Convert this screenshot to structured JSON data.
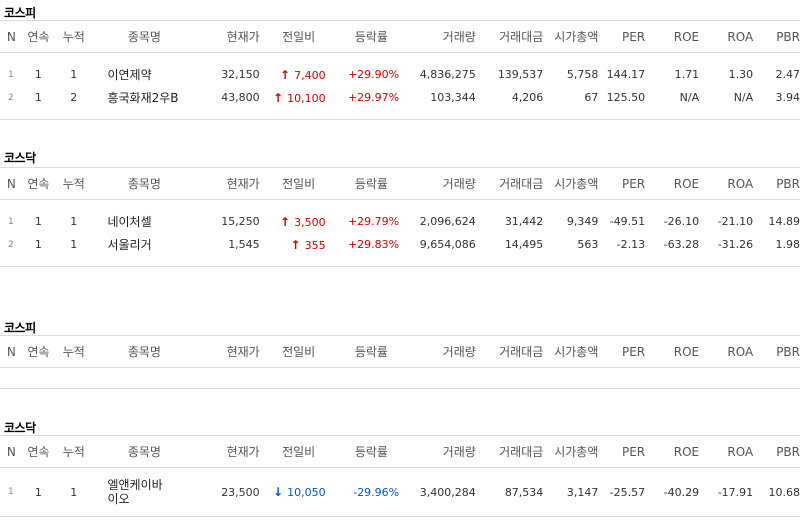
{
  "columns": [
    "N",
    "연속",
    "누적",
    "종목명",
    "현재가",
    "전일비",
    "등락률",
    "거래량",
    "거래대금",
    "시가총액",
    "PER",
    "ROE",
    "ROA",
    "PBR"
  ],
  "sections": [
    {
      "title": "코스피",
      "rows": [
        {
          "n": "1",
          "cont": "1",
          "cum": "1",
          "name": "이연제약",
          "price": "32,150",
          "dir": "up",
          "change": "7,400",
          "rate": "+29.90%",
          "volume": "4,836,275",
          "amount": "139,537",
          "cap": "5,758",
          "per": "144.17",
          "roe": "1.71",
          "roa": "1.30",
          "pbr": "2.47"
        },
        {
          "n": "2",
          "cont": "1",
          "cum": "2",
          "name": "흥국화재2우B",
          "price": "43,800",
          "dir": "up",
          "change": "10,100",
          "rate": "+29.97%",
          "volume": "103,344",
          "amount": "4,206",
          "cap": "67",
          "per": "125.50",
          "roe": "N/A",
          "roa": "N/A",
          "pbr": "3.94"
        }
      ]
    },
    {
      "title": "코스닥",
      "rows": [
        {
          "n": "1",
          "cont": "1",
          "cum": "1",
          "name": "네이처셀",
          "price": "15,250",
          "dir": "up",
          "change": "3,500",
          "rate": "+29.79%",
          "volume": "2,096,624",
          "amount": "31,442",
          "cap": "9,349",
          "per": "-49.51",
          "roe": "-26.10",
          "roa": "-21.10",
          "pbr": "14.89"
        },
        {
          "n": "2",
          "cont": "1",
          "cum": "1",
          "name": "서울리거",
          "price": "1,545",
          "dir": "up",
          "change": "355",
          "rate": "+29.83%",
          "volume": "9,654,086",
          "amount": "14,495",
          "cap": "563",
          "per": "-2.13",
          "roe": "-63.28",
          "roa": "-31.26",
          "pbr": "1.98"
        }
      ]
    },
    {
      "title": "코스피",
      "rows": []
    },
    {
      "title": "코스닥",
      "rows": [
        {
          "n": "1",
          "cont": "1",
          "cum": "1",
          "name": "엘앤케이바이오",
          "price": "23,500",
          "dir": "down",
          "change": "10,050",
          "rate": "-29.96%",
          "volume": "3,400,284",
          "amount": "87,534",
          "cap": "3,147",
          "per": "-25.57",
          "roe": "-40.29",
          "roa": "-17.91",
          "pbr": "10.68"
        }
      ]
    }
  ],
  "colors": {
    "up": "#d20000",
    "down": "#0055cc",
    "border": "#dcdcdc"
  }
}
